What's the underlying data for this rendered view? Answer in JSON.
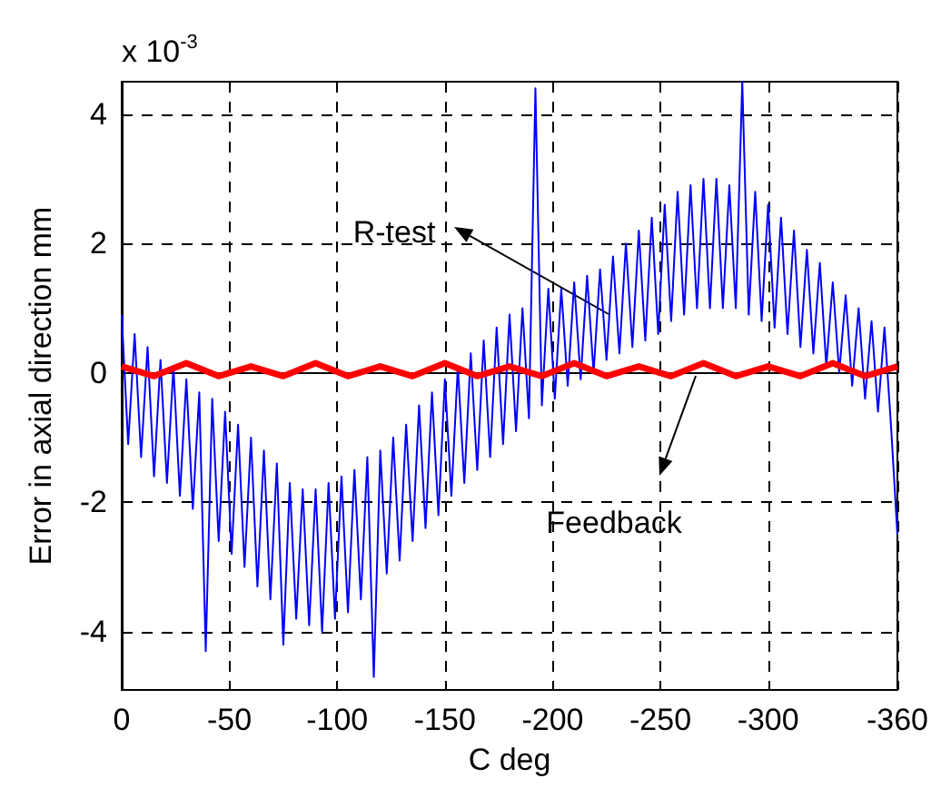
{
  "chart_data": {
    "type": "line",
    "xlabel": "C deg",
    "ylabel": "Error in axial direction mm",
    "xlim": [
      0,
      -360
    ],
    "xticks": [
      0,
      -50,
      -100,
      -150,
      -200,
      -250,
      -300,
      -360
    ],
    "ylim": [
      -4.9,
      4.5
    ],
    "yticks": [
      -4,
      -2,
      0,
      2,
      4
    ],
    "grid": true,
    "marker": "none",
    "line_style": "solid",
    "annotations": [
      "x 10$^{-3}$",
      "R-test",
      "Feedback"
    ],
    "series": [
      {
        "color": "#0000ff",
        "x": [
          0,
          -3,
          -6,
          -9,
          -12,
          -15,
          -18,
          -21,
          -24,
          -27,
          -30,
          -33,
          -36,
          -39,
          -42,
          -45,
          -48,
          -51,
          -54,
          -57,
          -60,
          -63,
          -66,
          -69,
          -72,
          -75,
          -78,
          -81,
          -84,
          -87,
          -90,
          -93,
          -96,
          -99,
          -102,
          -105,
          -108,
          -111,
          -114,
          -117,
          -120,
          -123,
          -126,
          -129,
          -132,
          -135,
          -138,
          -141,
          -144,
          -147,
          -150,
          -153,
          -156,
          -159,
          -162,
          -165,
          -168,
          -171,
          -174,
          -177,
          -180,
          -183,
          -186,
          -189,
          -192,
          -195,
          -198,
          -201,
          -204,
          -207,
          -210,
          -213,
          -216,
          -219,
          -222,
          -225,
          -228,
          -231,
          -234,
          -237,
          -240,
          -243,
          -246,
          -249,
          -252,
          -255,
          -258,
          -261,
          -264,
          -267,
          -270,
          -273,
          -276,
          -279,
          -282,
          -285,
          -288,
          -291,
          -294,
          -297,
          -300,
          -303,
          -306,
          -309,
          -312,
          -315,
          -318,
          -321,
          -324,
          -327,
          -330,
          -333,
          -336,
          -339,
          -342,
          -345,
          -348,
          -351,
          -354,
          -357,
          -360
        ],
        "values": [
          0.9,
          -1.1,
          0.6,
          -1.3,
          0.4,
          -1.6,
          0.2,
          -1.7,
          0.1,
          -1.9,
          -0.1,
          -2.1,
          -0.3,
          -4.3,
          -0.4,
          -2.6,
          -0.6,
          -2.8,
          -0.8,
          -3.0,
          -1.0,
          -3.3,
          -1.2,
          -3.5,
          -1.4,
          -4.2,
          -1.7,
          -3.8,
          -1.8,
          -3.9,
          -1.8,
          -4.0,
          -1.7,
          -3.8,
          -1.6,
          -3.7,
          -1.5,
          -3.5,
          -1.3,
          -4.7,
          -1.2,
          -3.1,
          -1.0,
          -2.9,
          -0.8,
          -2.6,
          -0.5,
          -2.4,
          -0.3,
          -2.2,
          -0.1,
          -1.9,
          0.1,
          -1.7,
          0.3,
          -1.5,
          0.5,
          -1.3,
          0.7,
          -1.1,
          0.9,
          -0.9,
          1.0,
          -0.7,
          4.4,
          -0.5,
          1.3,
          -0.4,
          1.3,
          -0.2,
          1.4,
          -0.1,
          1.5,
          0.0,
          1.6,
          0.2,
          1.8,
          0.3,
          2.0,
          0.4,
          2.2,
          0.5,
          2.4,
          0.6,
          2.6,
          0.8,
          2.8,
          0.9,
          2.9,
          1.0,
          3.0,
          1.0,
          3.0,
          1.0,
          2.9,
          1.0,
          4.5,
          0.9,
          2.8,
          0.8,
          2.6,
          0.7,
          2.4,
          0.6,
          2.2,
          0.4,
          1.9,
          0.3,
          1.7,
          0.1,
          1.4,
          0.0,
          1.2,
          -0.2,
          1.0,
          -0.4,
          0.8,
          -0.6,
          0.7,
          -0.8,
          -2.5
        ]
      },
      {
        "color": "#ff0000",
        "x": [
          0,
          -15,
          -30,
          -45,
          -60,
          -75,
          -90,
          -105,
          -120,
          -135,
          -150,
          -165,
          -180,
          -195,
          -210,
          -225,
          -240,
          -255,
          -270,
          -285,
          -300,
          -315,
          -330,
          -345,
          -360
        ],
        "values": [
          0.1,
          -0.05,
          0.15,
          -0.05,
          0.1,
          -0.05,
          0.15,
          -0.05,
          0.1,
          -0.05,
          0.15,
          -0.05,
          0.1,
          -0.05,
          0.15,
          -0.05,
          0.1,
          -0.05,
          0.15,
          -0.05,
          0.1,
          -0.05,
          0.15,
          -0.05,
          0.1
        ]
      }
    ]
  }
}
